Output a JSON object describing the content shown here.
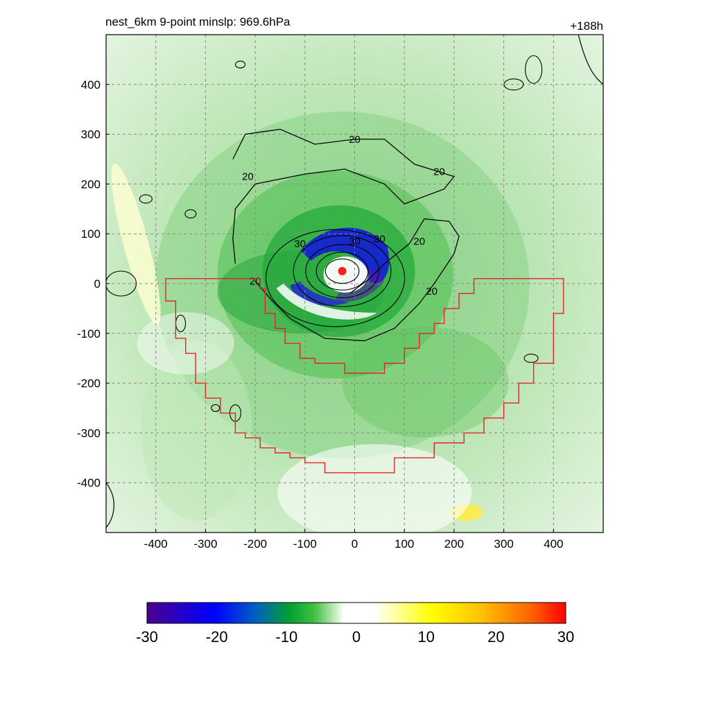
{
  "chart_data": {
    "type": "contour",
    "title_left": "nest_6km  9-point minslp: 969.6hPa",
    "title_right": "+188h",
    "xlim": [
      -500,
      500
    ],
    "ylim": [
      -500,
      500
    ],
    "x_ticks": [
      -400,
      -300,
      -200,
      -100,
      0,
      100,
      200,
      300,
      400
    ],
    "y_ticks": [
      400,
      300,
      200,
      100,
      0,
      -100,
      -200,
      -300,
      -400
    ],
    "grid": "dashed",
    "storm_center": [
      -25,
      25
    ],
    "contour_labels": [
      {
        "text": "20",
        "x": 0,
        "y": 290
      },
      {
        "text": "20",
        "x": -215,
        "y": 215
      },
      {
        "text": "20",
        "x": 170,
        "y": 225
      },
      {
        "text": "20",
        "x": 130,
        "y": 85
      },
      {
        "text": "20",
        "x": -200,
        "y": 5
      },
      {
        "text": "20",
        "x": 155,
        "y": -15
      },
      {
        "text": "30",
        "x": -110,
        "y": 80
      },
      {
        "text": "30",
        "x": 0,
        "y": 85
      },
      {
        "text": "30",
        "x": 50,
        "y": 90
      }
    ],
    "colorbar": {
      "min": -30,
      "max": 30,
      "tick_labels": [
        "-30",
        "-20",
        "-10",
        "0",
        "10",
        "20",
        "30"
      ]
    },
    "colors": {
      "red_outline": "#e8202a",
      "storm_center": "#ff2020"
    }
  }
}
